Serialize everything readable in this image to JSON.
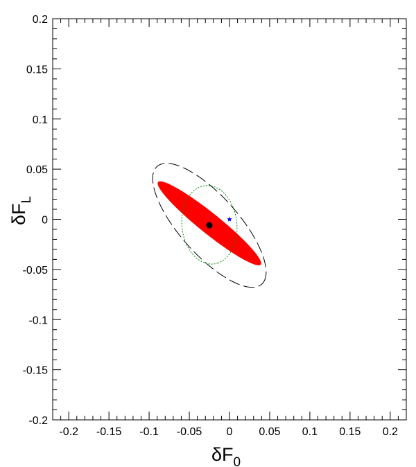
{
  "chart_data": {
    "type": "scatter",
    "title": "",
    "xlabel": "δF",
    "xlabel_subscript": "0",
    "ylabel": "δF",
    "ylabel_subscript": "L",
    "xlim": [
      -0.22,
      0.22
    ],
    "ylim": [
      -0.2,
      0.2
    ],
    "grid": false,
    "x_ticks": [
      {
        "value": -0.2,
        "label": "-0.2"
      },
      {
        "value": -0.15,
        "label": "-0.15"
      },
      {
        "value": -0.1,
        "label": "-0.1"
      },
      {
        "value": -0.05,
        "label": "-0.05"
      },
      {
        "value": 0,
        "label": "0"
      },
      {
        "value": 0.05,
        "label": "0.05"
      },
      {
        "value": 0.1,
        "label": "0.1"
      },
      {
        "value": 0.15,
        "label": "0.15"
      },
      {
        "value": 0.2,
        "label": "0.2"
      }
    ],
    "y_ticks": [
      {
        "value": -0.2,
        "label": "-0.2"
      },
      {
        "value": -0.15,
        "label": "-0.15"
      },
      {
        "value": -0.1,
        "label": "-0.1"
      },
      {
        "value": -0.05,
        "label": "-0.05"
      },
      {
        "value": 0,
        "label": "0"
      },
      {
        "value": 0.05,
        "label": "0.05"
      },
      {
        "value": 0.1,
        "label": "0.1"
      },
      {
        "value": 0.15,
        "label": "0.15"
      },
      {
        "value": 0.2,
        "label": "0.2"
      }
    ],
    "best_fit_point": {
      "x": -0.025,
      "y": -0.006,
      "color": "#000000"
    },
    "reference_point": {
      "x": 0.0,
      "y": 0.0,
      "color": "#0000ff"
    },
    "contours": [
      {
        "style": "filled",
        "color": "#ff0000",
        "center": {
          "x": -0.025,
          "y": -0.004
        },
        "semi_axis_major": 0.076,
        "semi_axis_minor": 0.011,
        "rotation_deg": -32.5
      },
      {
        "style": "long-dash",
        "color": "#000000",
        "center": {
          "x": -0.025,
          "y": -0.006
        },
        "semi_axis_major": 0.088,
        "semi_axis_minor": 0.0325,
        "rotation_deg": -40
      },
      {
        "style": "dotted",
        "color": "#008800",
        "center": {
          "x": -0.025,
          "y": -0.0055
        },
        "semi_axis_major": 0.0395,
        "semi_axis_minor": 0.034,
        "rotation_deg": -75
      }
    ]
  }
}
